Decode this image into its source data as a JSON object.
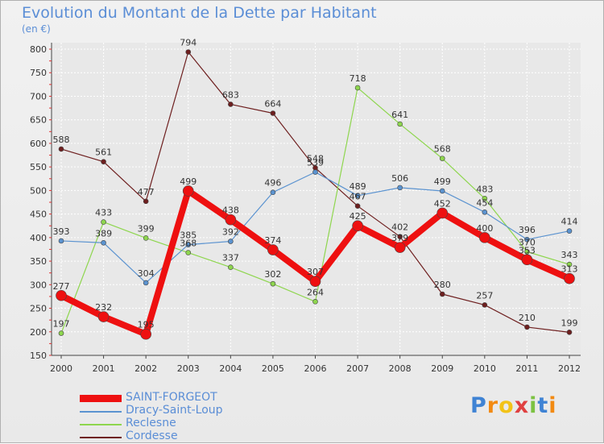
{
  "chart_data": {
    "type": "line",
    "title": "Evolution du Montant de la Dette par Habitant",
    "subtitle": "(en €)",
    "xlabel": "",
    "ylabel": "",
    "ylim": [
      150,
      800
    ],
    "yticks": [
      150,
      200,
      250,
      300,
      350,
      400,
      450,
      500,
      550,
      600,
      650,
      700,
      750,
      800
    ],
    "x": [
      "2000",
      "2001",
      "2002",
      "2003",
      "2004",
      "2005",
      "2006",
      "2007",
      "2008",
      "2009",
      "2010",
      "2011",
      "2012"
    ],
    "grid": true,
    "legend_position": "bottom-left",
    "series": [
      {
        "name": "Cordesse",
        "color": "#6e1f1f",
        "values": [
          588,
          561,
          477,
          794,
          683,
          664,
          548,
          467,
          402,
          280,
          257,
          210,
          199
        ]
      },
      {
        "name": "Reclesne",
        "color": "#8ed64e",
        "values": [
          197,
          433,
          399,
          368,
          337,
          302,
          264,
          718,
          641,
          568,
          483,
          370,
          343
        ]
      },
      {
        "name": "Dracy-Saint-Loup",
        "color": "#5b93d0",
        "values": [
          393,
          389,
          304,
          385,
          392,
          496,
          539,
          489,
          506,
          499,
          454,
          396,
          414
        ]
      },
      {
        "name": "SAINT-FORGEOT",
        "color": "#ee1010",
        "values": [
          277,
          232,
          195,
          499,
          438,
          374,
          307,
          425,
          379,
          452,
          400,
          353,
          313
        ]
      }
    ]
  },
  "legend": [
    {
      "label": "SAINT-FORGEOT",
      "color": "#ee1010"
    },
    {
      "label": "Dracy-Saint-Loup",
      "color": "#5b93d0"
    },
    {
      "label": "Reclesne",
      "color": "#8ed64e"
    },
    {
      "label": "Cordesse",
      "color": "#6e1f1f"
    }
  ],
  "logo": {
    "text": "Proxiti",
    "letters": [
      "P",
      "r",
      "o",
      "x",
      "i",
      "t",
      "i"
    ]
  }
}
